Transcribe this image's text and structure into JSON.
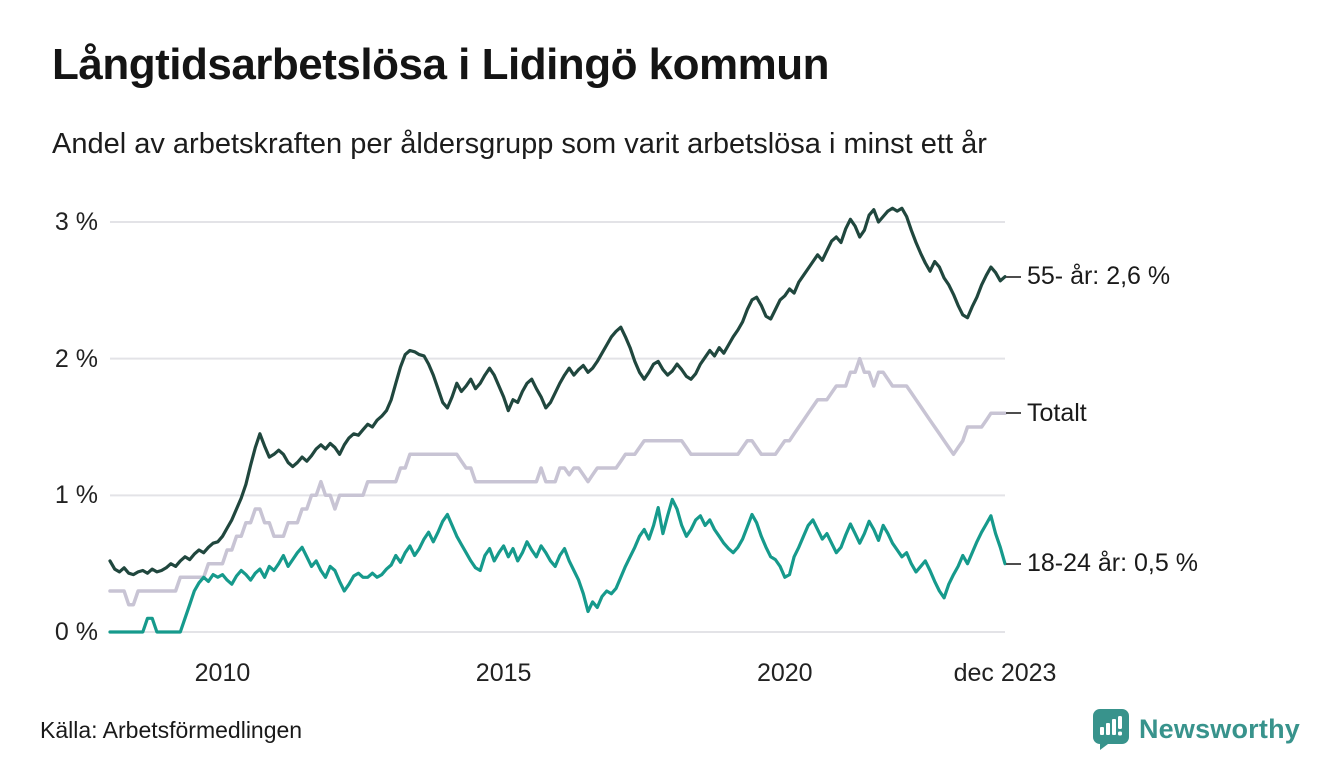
{
  "header": {
    "title": "Långtidsarbetslösa i Lidingö kommun",
    "subtitle": "Andel av arbetskraften per åldersgrupp som varit arbetslösa i minst ett år"
  },
  "footer": {
    "source": "Källa: Arbetsförmedlingen",
    "brand": {
      "name": "Newsworthy",
      "color": "#38938c",
      "icon": "bar-chart-speech-bubble-icon"
    }
  },
  "colors": {
    "background": "#ffffff",
    "gridline": "#e3e3e7",
    "axis_text": "#222222",
    "label_dash": "#4d4d4d"
  },
  "chart_data": {
    "type": "line",
    "title": "Långtidsarbetslösa i Lidingö kommun",
    "subtitle": "Andel av arbetskraften per åldersgrupp som varit arbetslösa i minst ett år",
    "x_unit": "month",
    "x_start": "2008-01",
    "x_end": "2023-12",
    "ylim": [
      0,
      3.2
    ],
    "grid": true,
    "legend_position": "right-end-labels",
    "yticks": [
      {
        "label": "0 %",
        "value": 0
      },
      {
        "label": "1 %",
        "value": 1
      },
      {
        "label": "2 %",
        "value": 2
      },
      {
        "label": "3 %",
        "value": 3
      }
    ],
    "xticks": [
      {
        "label": "2010",
        "month_index": 24
      },
      {
        "label": "2015",
        "month_index": 84
      },
      {
        "label": "2020",
        "month_index": 144
      },
      {
        "label": "dec 2023",
        "month_index": 191
      }
    ],
    "series": [
      {
        "name": "55- år",
        "end_label": "55- år: 2,6 %",
        "last_value": "2,6 %",
        "color": "#20473e",
        "stroke_width": 3.2,
        "values": [
          0.52,
          0.46,
          0.44,
          0.47,
          0.43,
          0.42,
          0.44,
          0.45,
          0.43,
          0.46,
          0.44,
          0.45,
          0.47,
          0.5,
          0.48,
          0.52,
          0.55,
          0.53,
          0.57,
          0.6,
          0.58,
          0.62,
          0.65,
          0.66,
          0.7,
          0.76,
          0.82,
          0.9,
          0.98,
          1.08,
          1.22,
          1.35,
          1.45,
          1.36,
          1.28,
          1.3,
          1.33,
          1.3,
          1.24,
          1.21,
          1.24,
          1.28,
          1.25,
          1.29,
          1.34,
          1.37,
          1.34,
          1.38,
          1.35,
          1.3,
          1.37,
          1.42,
          1.45,
          1.44,
          1.48,
          1.52,
          1.5,
          1.55,
          1.58,
          1.62,
          1.7,
          1.82,
          1.94,
          2.03,
          2.06,
          2.05,
          2.03,
          2.02,
          1.96,
          1.88,
          1.78,
          1.68,
          1.64,
          1.72,
          1.82,
          1.76,
          1.8,
          1.85,
          1.78,
          1.82,
          1.88,
          1.93,
          1.88,
          1.8,
          1.72,
          1.62,
          1.7,
          1.68,
          1.76,
          1.82,
          1.85,
          1.78,
          1.72,
          1.64,
          1.68,
          1.75,
          1.82,
          1.88,
          1.93,
          1.88,
          1.92,
          1.95,
          1.9,
          1.93,
          1.98,
          2.04,
          2.1,
          2.16,
          2.2,
          2.23,
          2.16,
          2.08,
          1.98,
          1.9,
          1.85,
          1.9,
          1.96,
          1.98,
          1.92,
          1.88,
          1.91,
          1.96,
          1.92,
          1.87,
          1.85,
          1.89,
          1.96,
          2.01,
          2.06,
          2.02,
          2.08,
          2.04,
          2.1,
          2.16,
          2.21,
          2.27,
          2.36,
          2.43,
          2.45,
          2.39,
          2.31,
          2.29,
          2.36,
          2.43,
          2.46,
          2.51,
          2.48,
          2.56,
          2.61,
          2.66,
          2.71,
          2.76,
          2.72,
          2.79,
          2.86,
          2.89,
          2.85,
          2.95,
          3.02,
          2.97,
          2.89,
          2.94,
          3.05,
          3.09,
          3.0,
          3.04,
          3.08,
          3.1,
          3.08,
          3.1,
          3.04,
          2.94,
          2.85,
          2.77,
          2.7,
          2.64,
          2.71,
          2.67,
          2.59,
          2.54,
          2.47,
          2.39,
          2.32,
          2.3,
          2.38,
          2.45,
          2.54,
          2.61,
          2.67,
          2.63,
          2.57,
          2.6
        ]
      },
      {
        "name": "Totalt",
        "end_label": "Totalt",
        "last_value": "1,6 %",
        "color": "#c8c4d4",
        "stroke_width": 3.5,
        "values": [
          0.3,
          0.3,
          0.3,
          0.3,
          0.2,
          0.2,
          0.3,
          0.3,
          0.3,
          0.3,
          0.3,
          0.3,
          0.3,
          0.3,
          0.3,
          0.4,
          0.4,
          0.4,
          0.4,
          0.4,
          0.4,
          0.5,
          0.5,
          0.5,
          0.5,
          0.6,
          0.6,
          0.7,
          0.7,
          0.8,
          0.8,
          0.9,
          0.9,
          0.8,
          0.8,
          0.7,
          0.7,
          0.7,
          0.8,
          0.8,
          0.8,
          0.9,
          0.9,
          1.0,
          1.0,
          1.1,
          1.0,
          1.0,
          0.9,
          1.0,
          1.0,
          1.0,
          1.0,
          1.0,
          1.0,
          1.1,
          1.1,
          1.1,
          1.1,
          1.1,
          1.1,
          1.1,
          1.2,
          1.2,
          1.3,
          1.3,
          1.3,
          1.3,
          1.3,
          1.3,
          1.3,
          1.3,
          1.3,
          1.3,
          1.3,
          1.25,
          1.2,
          1.2,
          1.1,
          1.1,
          1.1,
          1.1,
          1.1,
          1.1,
          1.1,
          1.1,
          1.1,
          1.1,
          1.1,
          1.1,
          1.1,
          1.1,
          1.2,
          1.1,
          1.1,
          1.1,
          1.2,
          1.2,
          1.15,
          1.2,
          1.2,
          1.15,
          1.1,
          1.15,
          1.2,
          1.2,
          1.2,
          1.2,
          1.2,
          1.25,
          1.3,
          1.3,
          1.3,
          1.35,
          1.4,
          1.4,
          1.4,
          1.4,
          1.4,
          1.4,
          1.4,
          1.4,
          1.4,
          1.35,
          1.3,
          1.3,
          1.3,
          1.3,
          1.3,
          1.3,
          1.3,
          1.3,
          1.3,
          1.3,
          1.3,
          1.35,
          1.4,
          1.4,
          1.35,
          1.3,
          1.3,
          1.3,
          1.3,
          1.35,
          1.4,
          1.4,
          1.45,
          1.5,
          1.55,
          1.6,
          1.65,
          1.7,
          1.7,
          1.7,
          1.75,
          1.8,
          1.8,
          1.8,
          1.9,
          1.9,
          2.0,
          1.9,
          1.9,
          1.8,
          1.9,
          1.9,
          1.85,
          1.8,
          1.8,
          1.8,
          1.8,
          1.75,
          1.7,
          1.65,
          1.6,
          1.55,
          1.5,
          1.45,
          1.4,
          1.35,
          1.3,
          1.35,
          1.4,
          1.5,
          1.5,
          1.5,
          1.5,
          1.55,
          1.6,
          1.6,
          1.6,
          1.6
        ]
      },
      {
        "name": "18-24 år",
        "end_label": "18-24 år: 0,5 %",
        "last_value": "0,5 %",
        "color": "#169a8c",
        "stroke_width": 3.2,
        "values": [
          0.0,
          0.0,
          0.0,
          0.0,
          0.0,
          0.0,
          0.0,
          0.0,
          0.1,
          0.1,
          0.0,
          0.0,
          0.0,
          0.0,
          0.0,
          0.0,
          0.1,
          0.2,
          0.3,
          0.36,
          0.4,
          0.37,
          0.42,
          0.4,
          0.42,
          0.38,
          0.35,
          0.41,
          0.45,
          0.42,
          0.38,
          0.43,
          0.46,
          0.4,
          0.48,
          0.45,
          0.5,
          0.56,
          0.48,
          0.53,
          0.58,
          0.62,
          0.55,
          0.48,
          0.52,
          0.45,
          0.4,
          0.48,
          0.45,
          0.37,
          0.3,
          0.35,
          0.41,
          0.43,
          0.4,
          0.4,
          0.43,
          0.4,
          0.42,
          0.46,
          0.49,
          0.56,
          0.51,
          0.58,
          0.63,
          0.56,
          0.61,
          0.68,
          0.73,
          0.66,
          0.73,
          0.81,
          0.86,
          0.78,
          0.7,
          0.64,
          0.58,
          0.52,
          0.47,
          0.45,
          0.56,
          0.61,
          0.52,
          0.58,
          0.63,
          0.55,
          0.61,
          0.52,
          0.58,
          0.66,
          0.6,
          0.55,
          0.63,
          0.58,
          0.52,
          0.48,
          0.56,
          0.61,
          0.52,
          0.45,
          0.38,
          0.28,
          0.15,
          0.22,
          0.18,
          0.26,
          0.3,
          0.28,
          0.32,
          0.4,
          0.48,
          0.55,
          0.62,
          0.7,
          0.75,
          0.68,
          0.78,
          0.91,
          0.72,
          0.85,
          0.97,
          0.9,
          0.78,
          0.7,
          0.75,
          0.82,
          0.85,
          0.78,
          0.82,
          0.75,
          0.7,
          0.65,
          0.61,
          0.58,
          0.62,
          0.68,
          0.77,
          0.86,
          0.8,
          0.7,
          0.62,
          0.55,
          0.53,
          0.48,
          0.4,
          0.42,
          0.55,
          0.62,
          0.7,
          0.78,
          0.82,
          0.75,
          0.68,
          0.72,
          0.65,
          0.58,
          0.62,
          0.71,
          0.79,
          0.72,
          0.65,
          0.72,
          0.81,
          0.75,
          0.67,
          0.78,
          0.72,
          0.65,
          0.6,
          0.55,
          0.58,
          0.5,
          0.44,
          0.48,
          0.52,
          0.45,
          0.37,
          0.3,
          0.25,
          0.35,
          0.42,
          0.48,
          0.56,
          0.5,
          0.58,
          0.66,
          0.73,
          0.79,
          0.85,
          0.72,
          0.62,
          0.5
        ]
      }
    ]
  }
}
